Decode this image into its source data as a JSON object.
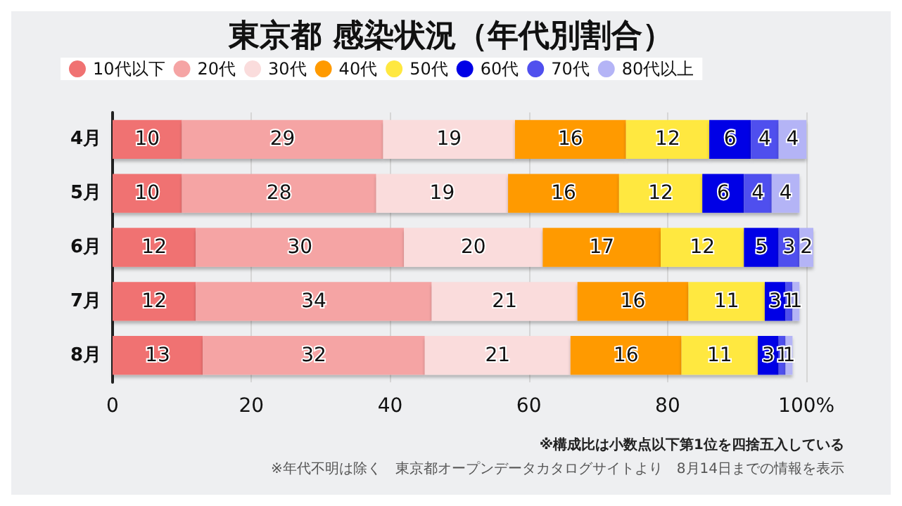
{
  "chart_data": {
    "type": "bar",
    "orientation": "horizontal",
    "stacked": true,
    "title": "東京都 感染状況（年代別割合）",
    "categories": [
      "4月",
      "5月",
      "6月",
      "7月",
      "8月"
    ],
    "series": [
      {
        "name": "10代以下",
        "color": "#f07272",
        "values": [
          10,
          10,
          12,
          12,
          13
        ]
      },
      {
        "name": "20代",
        "color": "#f5a4a4",
        "values": [
          29,
          28,
          30,
          34,
          32
        ]
      },
      {
        "name": "30代",
        "color": "#fadcdc",
        "values": [
          19,
          19,
          20,
          21,
          21
        ]
      },
      {
        "name": "40代",
        "color": "#ff9a00",
        "values": [
          16,
          16,
          17,
          16,
          16
        ]
      },
      {
        "name": "50代",
        "color": "#ffe840",
        "values": [
          12,
          12,
          12,
          11,
          11
        ]
      },
      {
        "name": "60代",
        "color": "#0000e6",
        "values": [
          6,
          6,
          5,
          3,
          3
        ]
      },
      {
        "name": "70代",
        "color": "#5050ee",
        "values": [
          4,
          4,
          3,
          1,
          1
        ]
      },
      {
        "name": "80代以上",
        "color": "#b4b4f6",
        "values": [
          4,
          4,
          2,
          1,
          1
        ]
      }
    ],
    "xlim": [
      0,
      101
    ],
    "xticks": [
      0,
      20,
      40,
      60,
      80,
      {
        "value": 100,
        "label": "100%"
      }
    ],
    "grid": "x",
    "legend": "top",
    "data_labels": true,
    "annotations": [
      "※構成比は小数点以下第1位を四捨五入している",
      "※年代不明は除く　東京都オープンデータカタログサイトより　8月14日までの情報を表示"
    ]
  }
}
